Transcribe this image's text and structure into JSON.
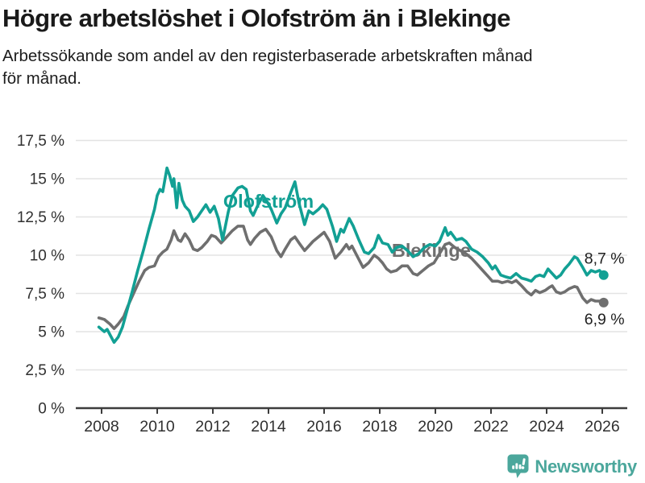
{
  "header": {
    "title": "Högre arbetslöshet i Olofström än i Blekinge",
    "subtitle_lines": [
      "Arbetssökande som andel av den registerbaserade arbetskraften månad",
      "för månad."
    ]
  },
  "colors": {
    "olofstrom": "#12A094",
    "blekinge": "#6F6F6F",
    "grid": "#E3E3E3",
    "axis": "#3C3C3C",
    "tick_text": "#303030",
    "value_label": "#1F1F1F",
    "logo": "#4BA79C"
  },
  "chart_data": {
    "type": "line",
    "title": "Högre arbetslöshet i Olofström än i Blekinge",
    "subtitle": "Arbetssökande som andel av den registerbaserade arbetskraften månad för månad.",
    "x_axis": {
      "ticks": [
        2008,
        2010,
        2012,
        2014,
        2016,
        2018,
        2020,
        2022,
        2024,
        2026
      ],
      "range": [
        2007.1,
        2026.9
      ]
    },
    "y_axis": {
      "ticks": [
        {
          "value": 0,
          "label": "0 %"
        },
        {
          "value": 2.5,
          "label": "2,5 %"
        },
        {
          "value": 5,
          "label": "5 %"
        },
        {
          "value": 7.5,
          "label": "7,5 %"
        },
        {
          "value": 10,
          "label": "10 %"
        },
        {
          "value": 12.5,
          "label": "12,5 %"
        },
        {
          "value": 15,
          "label": "15 %"
        },
        {
          "value": 17.5,
          "label": "17,5 %"
        }
      ],
      "range": [
        0,
        17.5
      ]
    },
    "grid": "horizontal-only",
    "legend": "inline-labels",
    "series": [
      {
        "name": "Blekinge",
        "color": "#6F6F6F",
        "end_label": "6,9 %",
        "end_label_position": "below",
        "label_pos": [
          2019.85,
          9.9
        ],
        "points": [
          [
            2007.9,
            5.9
          ],
          [
            2008.1,
            5.8
          ],
          [
            2008.3,
            5.5
          ],
          [
            2008.45,
            5.2
          ],
          [
            2008.6,
            5.5
          ],
          [
            2008.8,
            6.0
          ],
          [
            2008.95,
            6.7
          ],
          [
            2009.15,
            7.5
          ],
          [
            2009.35,
            8.3
          ],
          [
            2009.55,
            9.0
          ],
          [
            2009.7,
            9.2
          ],
          [
            2009.9,
            9.3
          ],
          [
            2010.05,
            9.9
          ],
          [
            2010.2,
            10.2
          ],
          [
            2010.35,
            10.4
          ],
          [
            2010.5,
            11.0
          ],
          [
            2010.6,
            11.6
          ],
          [
            2010.75,
            11.0
          ],
          [
            2010.85,
            10.9
          ],
          [
            2011.0,
            11.4
          ],
          [
            2011.15,
            11.0
          ],
          [
            2011.3,
            10.4
          ],
          [
            2011.45,
            10.3
          ],
          [
            2011.6,
            10.5
          ],
          [
            2011.8,
            10.9
          ],
          [
            2011.95,
            11.3
          ],
          [
            2012.1,
            11.2
          ],
          [
            2012.3,
            10.8
          ],
          [
            2012.5,
            11.2
          ],
          [
            2012.7,
            11.6
          ],
          [
            2012.9,
            11.9
          ],
          [
            2013.1,
            11.9
          ],
          [
            2013.25,
            11.0
          ],
          [
            2013.35,
            10.7
          ],
          [
            2013.5,
            11.1
          ],
          [
            2013.7,
            11.5
          ],
          [
            2013.9,
            11.7
          ],
          [
            2014.1,
            11.2
          ],
          [
            2014.3,
            10.3
          ],
          [
            2014.45,
            9.9
          ],
          [
            2014.6,
            10.4
          ],
          [
            2014.8,
            11.0
          ],
          [
            2014.95,
            11.2
          ],
          [
            2015.1,
            10.8
          ],
          [
            2015.3,
            10.3
          ],
          [
            2015.45,
            10.6
          ],
          [
            2015.6,
            10.9
          ],
          [
            2015.8,
            11.2
          ],
          [
            2016.0,
            11.5
          ],
          [
            2016.2,
            10.9
          ],
          [
            2016.4,
            9.8
          ],
          [
            2016.6,
            10.2
          ],
          [
            2016.8,
            10.7
          ],
          [
            2016.9,
            10.4
          ],
          [
            2017.0,
            10.6
          ],
          [
            2017.2,
            9.9
          ],
          [
            2017.4,
            9.2
          ],
          [
            2017.6,
            9.5
          ],
          [
            2017.8,
            10.0
          ],
          [
            2017.95,
            9.8
          ],
          [
            2018.1,
            9.5
          ],
          [
            2018.25,
            9.1
          ],
          [
            2018.4,
            8.9
          ],
          [
            2018.6,
            9.0
          ],
          [
            2018.8,
            9.3
          ],
          [
            2019.0,
            9.3
          ],
          [
            2019.2,
            8.8
          ],
          [
            2019.35,
            8.7
          ],
          [
            2019.55,
            9.0
          ],
          [
            2019.75,
            9.3
          ],
          [
            2019.95,
            9.5
          ],
          [
            2020.15,
            10.1
          ],
          [
            2020.35,
            10.7
          ],
          [
            2020.5,
            10.8
          ],
          [
            2020.7,
            10.5
          ],
          [
            2020.9,
            10.3
          ],
          [
            2021.1,
            10.1
          ],
          [
            2021.3,
            9.8
          ],
          [
            2021.5,
            9.4
          ],
          [
            2021.7,
            9.0
          ],
          [
            2021.9,
            8.6
          ],
          [
            2022.05,
            8.3
          ],
          [
            2022.25,
            8.3
          ],
          [
            2022.4,
            8.2
          ],
          [
            2022.6,
            8.3
          ],
          [
            2022.75,
            8.2
          ],
          [
            2022.9,
            8.35
          ],
          [
            2023.1,
            8.0
          ],
          [
            2023.3,
            7.6
          ],
          [
            2023.45,
            7.4
          ],
          [
            2023.6,
            7.7
          ],
          [
            2023.75,
            7.55
          ],
          [
            2023.95,
            7.7
          ],
          [
            2024.1,
            7.9
          ],
          [
            2024.2,
            8.0
          ],
          [
            2024.35,
            7.6
          ],
          [
            2024.5,
            7.5
          ],
          [
            2024.65,
            7.6
          ],
          [
            2024.8,
            7.8
          ],
          [
            2025.0,
            7.95
          ],
          [
            2025.1,
            7.9
          ],
          [
            2025.3,
            7.2
          ],
          [
            2025.45,
            6.9
          ],
          [
            2025.6,
            7.1
          ],
          [
            2025.75,
            7.0
          ],
          [
            2025.9,
            7.0
          ],
          [
            2026.05,
            6.9
          ]
        ]
      },
      {
        "name": "Olofström",
        "color": "#12A094",
        "end_label": "8,7 %",
        "end_label_position": "above",
        "label_pos": [
          2014.0,
          13.1
        ],
        "points": [
          [
            2007.9,
            5.3
          ],
          [
            2008.1,
            5.0
          ],
          [
            2008.2,
            5.15
          ],
          [
            2008.45,
            4.3
          ],
          [
            2008.6,
            4.65
          ],
          [
            2008.75,
            5.3
          ],
          [
            2008.9,
            6.3
          ],
          [
            2009.1,
            7.6
          ],
          [
            2009.3,
            9.0
          ],
          [
            2009.5,
            10.3
          ],
          [
            2009.7,
            11.7
          ],
          [
            2009.9,
            13.0
          ],
          [
            2010.0,
            13.9
          ],
          [
            2010.1,
            14.3
          ],
          [
            2010.2,
            14.15
          ],
          [
            2010.35,
            15.7
          ],
          [
            2010.45,
            15.2
          ],
          [
            2010.55,
            14.5
          ],
          [
            2010.6,
            15.0
          ],
          [
            2010.7,
            13.1
          ],
          [
            2010.78,
            14.7
          ],
          [
            2010.9,
            13.6
          ],
          [
            2011.0,
            13.2
          ],
          [
            2011.15,
            12.9
          ],
          [
            2011.3,
            12.2
          ],
          [
            2011.45,
            12.5
          ],
          [
            2011.6,
            12.9
          ],
          [
            2011.75,
            13.3
          ],
          [
            2011.9,
            12.8
          ],
          [
            2012.05,
            13.2
          ],
          [
            2012.2,
            12.4
          ],
          [
            2012.35,
            11.0
          ],
          [
            2012.55,
            12.8
          ],
          [
            2012.7,
            13.9
          ],
          [
            2012.9,
            14.4
          ],
          [
            2013.05,
            14.5
          ],
          [
            2013.2,
            14.3
          ],
          [
            2013.35,
            12.9
          ],
          [
            2013.45,
            12.6
          ],
          [
            2013.6,
            13.2
          ],
          [
            2013.8,
            13.9
          ],
          [
            2013.95,
            13.5
          ],
          [
            2014.1,
            13.0
          ],
          [
            2014.3,
            12.1
          ],
          [
            2014.45,
            12.7
          ],
          [
            2014.6,
            13.1
          ],
          [
            2014.8,
            14.1
          ],
          [
            2014.95,
            14.8
          ],
          [
            2015.1,
            13.4
          ],
          [
            2015.3,
            12.0
          ],
          [
            2015.45,
            12.9
          ],
          [
            2015.6,
            12.7
          ],
          [
            2015.8,
            13.0
          ],
          [
            2015.95,
            13.3
          ],
          [
            2016.1,
            13.0
          ],
          [
            2016.3,
            11.9
          ],
          [
            2016.45,
            10.9
          ],
          [
            2016.6,
            11.7
          ],
          [
            2016.7,
            11.5
          ],
          [
            2016.9,
            12.4
          ],
          [
            2017.05,
            11.9
          ],
          [
            2017.25,
            11.0
          ],
          [
            2017.45,
            10.2
          ],
          [
            2017.6,
            10.1
          ],
          [
            2017.8,
            10.5
          ],
          [
            2017.95,
            11.3
          ],
          [
            2018.1,
            10.8
          ],
          [
            2018.3,
            10.7
          ],
          [
            2018.45,
            10.2
          ],
          [
            2018.6,
            10.5
          ],
          [
            2018.8,
            10.6
          ],
          [
            2019.0,
            10.3
          ],
          [
            2019.2,
            9.9
          ],
          [
            2019.4,
            10.1
          ],
          [
            2019.6,
            10.5
          ],
          [
            2019.8,
            10.7
          ],
          [
            2020.0,
            10.6
          ],
          [
            2020.15,
            10.9
          ],
          [
            2020.35,
            11.8
          ],
          [
            2020.45,
            11.3
          ],
          [
            2020.55,
            11.5
          ],
          [
            2020.75,
            11.0
          ],
          [
            2020.95,
            11.1
          ],
          [
            2021.1,
            10.9
          ],
          [
            2021.3,
            10.4
          ],
          [
            2021.5,
            10.2
          ],
          [
            2021.7,
            9.9
          ],
          [
            2021.9,
            9.5
          ],
          [
            2022.05,
            9.1
          ],
          [
            2022.15,
            9.3
          ],
          [
            2022.35,
            8.7
          ],
          [
            2022.5,
            8.6
          ],
          [
            2022.7,
            8.5
          ],
          [
            2022.9,
            8.8
          ],
          [
            2023.1,
            8.5
          ],
          [
            2023.3,
            8.4
          ],
          [
            2023.45,
            8.3
          ],
          [
            2023.6,
            8.6
          ],
          [
            2023.75,
            8.7
          ],
          [
            2023.9,
            8.6
          ],
          [
            2024.05,
            9.1
          ],
          [
            2024.2,
            8.8
          ],
          [
            2024.35,
            8.5
          ],
          [
            2024.5,
            8.7
          ],
          [
            2024.65,
            9.1
          ],
          [
            2024.8,
            9.4
          ],
          [
            2025.0,
            9.9
          ],
          [
            2025.1,
            9.8
          ],
          [
            2025.3,
            9.2
          ],
          [
            2025.45,
            8.7
          ],
          [
            2025.6,
            9.0
          ],
          [
            2025.75,
            8.9
          ],
          [
            2025.9,
            9.0
          ],
          [
            2026.05,
            8.7
          ]
        ]
      }
    ]
  },
  "footer": {
    "brand": "Newsworthy"
  }
}
